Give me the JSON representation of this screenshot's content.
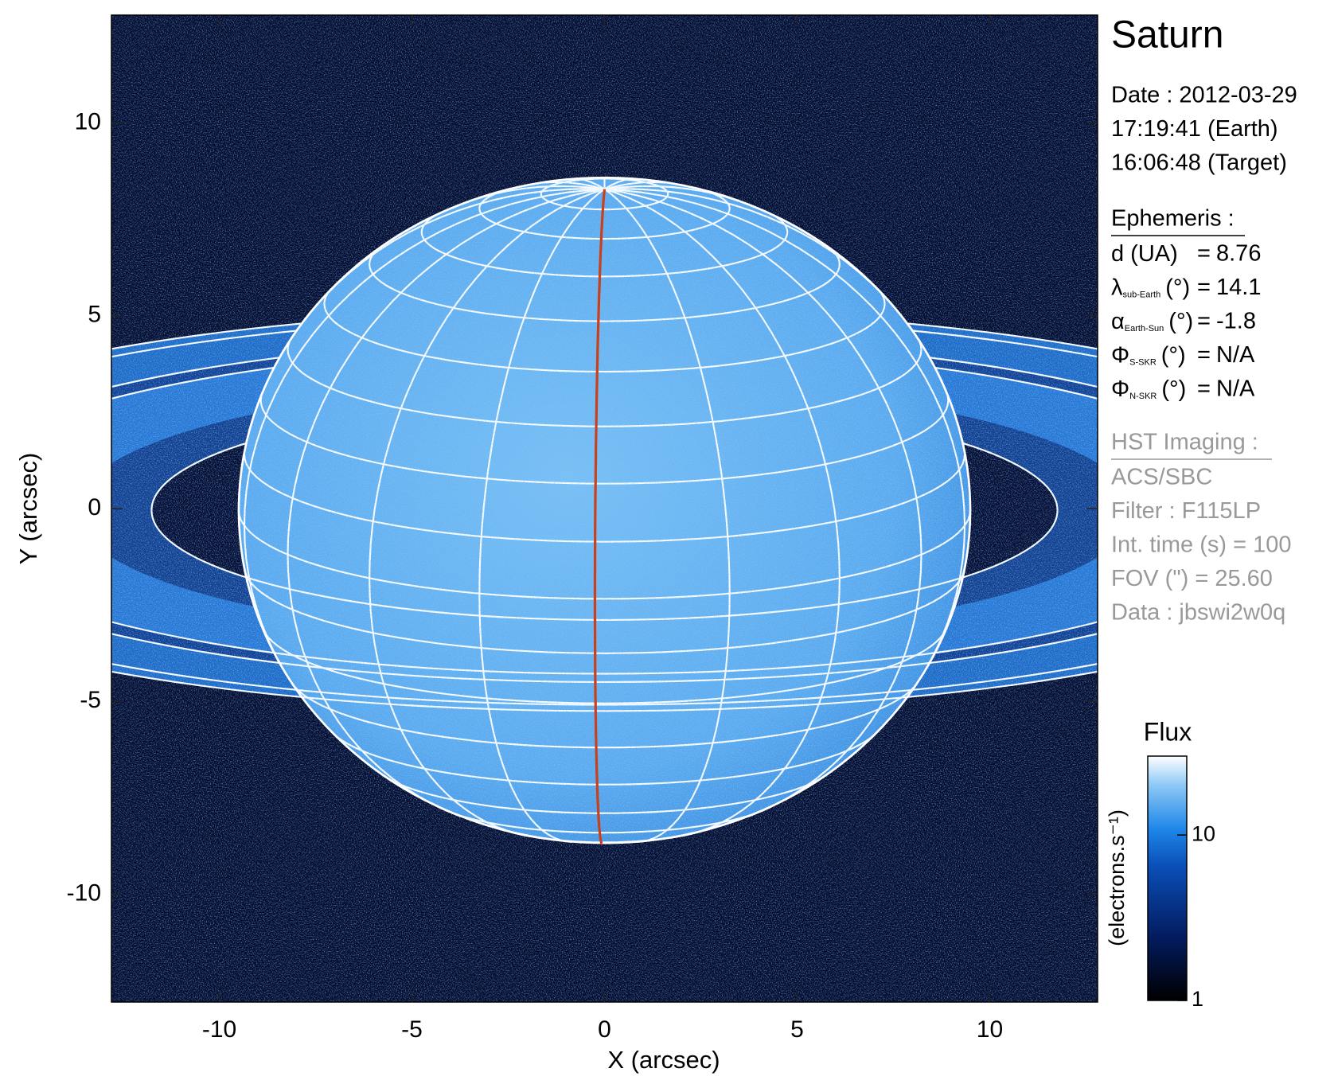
{
  "chart_data": {
    "type": "image",
    "title": "Saturn",
    "xlabel": "X (arcsec)",
    "ylabel": "Y (arcsec)",
    "xlim": [
      -12.8,
      12.8
    ],
    "ylim": [
      -12.8,
      12.8
    ],
    "xticks": [
      -10,
      -5,
      0,
      5,
      10
    ],
    "yticks": [
      -10,
      -5,
      0,
      5,
      10
    ],
    "date_lines": [
      "Date : 2012-03-29",
      "17:19:41 (Earth)",
      "16:06:48 (Target)"
    ],
    "ephemeris": {
      "header": "Ephemeris :",
      "equals": "=",
      "rows": [
        {
          "symbol": "d (UA)",
          "value": 8.76
        },
        {
          "symbol": "λ",
          "subscript": "sub-Earth",
          "unit": "(°)",
          "value": 14.1
        },
        {
          "symbol": "α",
          "subscript": "Earth-Sun",
          "unit": "(°)",
          "value": -1.8
        },
        {
          "symbol": "Φ",
          "subscript": "S-SKR",
          "unit": "(°)",
          "value": "N/A"
        },
        {
          "symbol": "Φ",
          "subscript": "N-SKR",
          "unit": "(°)",
          "value": "N/A"
        }
      ]
    },
    "imaging": {
      "header": "HST Imaging :",
      "rows": [
        "ACS/SBC",
        "Filter : F115LP",
        "Int. time (s) = 100",
        "FOV (\") = 25.60",
        "Data : jbswi2w0q"
      ]
    },
    "colorbar": {
      "title": "Flux",
      "label": "(electrons.s⁻¹)",
      "scale": "log",
      "lim": [
        1,
        30
      ],
      "ticks": [
        1,
        10
      ]
    }
  }
}
